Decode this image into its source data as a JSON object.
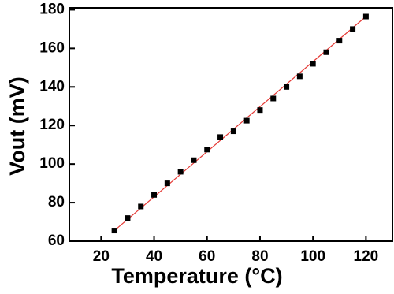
{
  "chart_data": {
    "type": "scatter",
    "x_label": "Temperature (°C)",
    "y_label": "Vout (mV)",
    "x": [
      25,
      30,
      35,
      40,
      45,
      50,
      55,
      60,
      65,
      70,
      75,
      80,
      85,
      90,
      95,
      100,
      105,
      110,
      115,
      120
    ],
    "series": [
      {
        "color": "#000000",
        "values": [
          65.5,
          72,
          78,
          84,
          90,
          96,
          102,
          107.5,
          114,
          117,
          122.5,
          128,
          134,
          140,
          145.5,
          152,
          158,
          164,
          170,
          176.5
        ]
      }
    ],
    "fit_line": {
      "x": [
        25,
        120
      ],
      "values": [
        65.5,
        176.5
      ],
      "color": "#e53935"
    },
    "xlim": [
      8,
      130
    ],
    "xticks": [
      20,
      40,
      60,
      80,
      100,
      120
    ],
    "ylim": [
      60,
      181
    ],
    "yticks": [
      60,
      80,
      100,
      120,
      140,
      160,
      180
    ]
  }
}
